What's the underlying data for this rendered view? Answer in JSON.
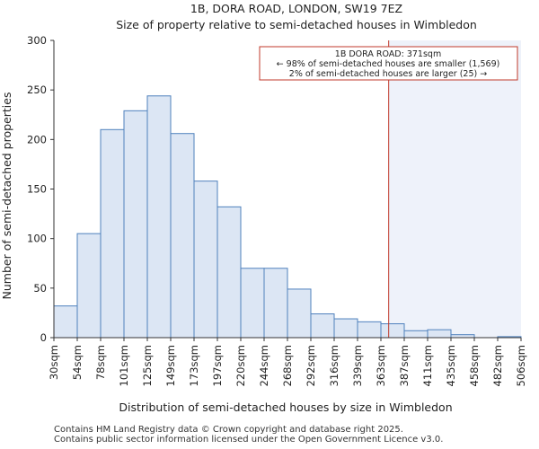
{
  "chart_data": {
    "type": "bar",
    "title": "1B, DORA ROAD, LONDON, SW19 7EZ",
    "subtitle": "Size of property relative to semi-detached houses in Wimbledon",
    "xlabel": "Distribution of semi-detached houses by size in Wimbledon",
    "ylabel": "Number of semi-detached properties",
    "x_tick_labels": [
      "30sqm",
      "54sqm",
      "78sqm",
      "101sqm",
      "125sqm",
      "149sqm",
      "173sqm",
      "197sqm",
      "220sqm",
      "244sqm",
      "268sqm",
      "292sqm",
      "316sqm",
      "339sqm",
      "363sqm",
      "387sqm",
      "411sqm",
      "435sqm",
      "458sqm",
      "482sqm",
      "506sqm"
    ],
    "bin_edges": [
      30,
      54,
      78,
      101,
      125,
      149,
      173,
      197,
      220,
      244,
      268,
      292,
      316,
      339,
      363,
      387,
      411,
      435,
      458,
      482,
      506
    ],
    "values": [
      32,
      105,
      210,
      229,
      244,
      206,
      158,
      132,
      70,
      70,
      49,
      24,
      19,
      16,
      14,
      7,
      8,
      3,
      0,
      1
    ],
    "ylim": [
      0,
      300
    ],
    "y_ticks": [
      0,
      50,
      100,
      150,
      200,
      250,
      300
    ],
    "grid": false,
    "bar_color": "#dce6f4",
    "bar_edge_color": "#4f81bd",
    "marker": {
      "value": 371,
      "color": "#c0392b",
      "highlight_color": "#eef2fa",
      "annotation_lines": [
        "1B DORA ROAD: 371sqm",
        "← 98% of semi-detached houses are smaller (1,569)",
        "2% of semi-detached houses are larger (25) →"
      ]
    }
  },
  "footer": {
    "line1": "Contains HM Land Registry data © Crown copyright and database right 2025.",
    "line2": "Contains public sector information licensed under the Open Government Licence v3.0."
  }
}
